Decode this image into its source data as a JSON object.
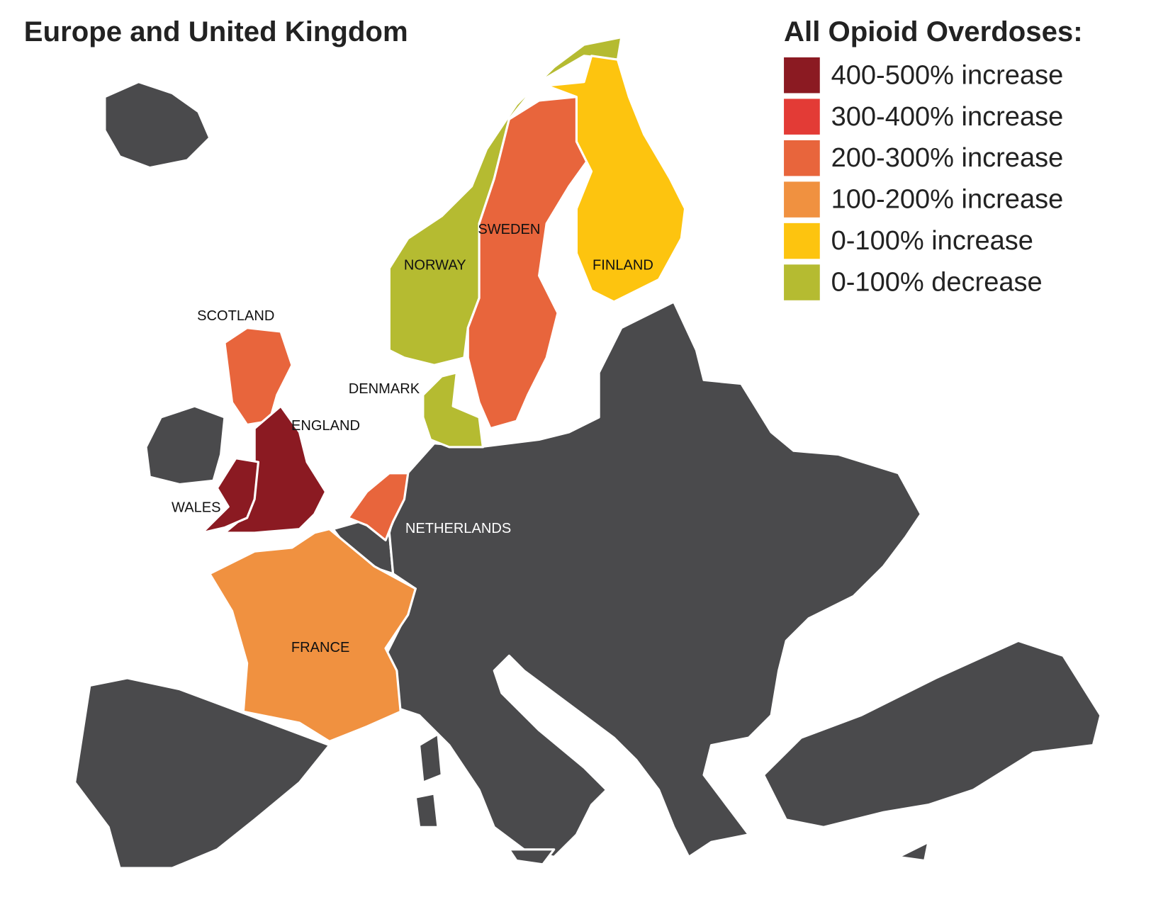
{
  "title": "Europe and United Kingdom",
  "legend": {
    "title": "All Opioid Overdoses:",
    "items": [
      {
        "label": "400-500% increase",
        "color": "#8b1a22"
      },
      {
        "label": "300-400% increase",
        "color": "#e33b36"
      },
      {
        "label": "200-300% increase",
        "color": "#e8653c"
      },
      {
        "label": "100-200% increase",
        "color": "#f09140"
      },
      {
        "label": "0-100% increase",
        "color": "#fdc40f"
      },
      {
        "label": "0-100% decrease",
        "color": "#b5bb31"
      }
    ]
  },
  "regions": [
    {
      "label": "SCOTLAND",
      "color": "#e8653c"
    },
    {
      "label": "ENGLAND",
      "color": "#8b1a22"
    },
    {
      "label": "WALES",
      "color": "#8b1a22"
    },
    {
      "label": "DENMARK",
      "color": "#b5bb31"
    },
    {
      "label": "NETHERLANDS",
      "color": "#e8653c"
    },
    {
      "label": "FRANCE",
      "color": "#f09140"
    },
    {
      "label": "NORWAY",
      "color": "#b5bb31"
    },
    {
      "label": "SWEDEN",
      "color": "#e8653c"
    },
    {
      "label": "FINLAND",
      "color": "#fdc40f"
    }
  ]
}
